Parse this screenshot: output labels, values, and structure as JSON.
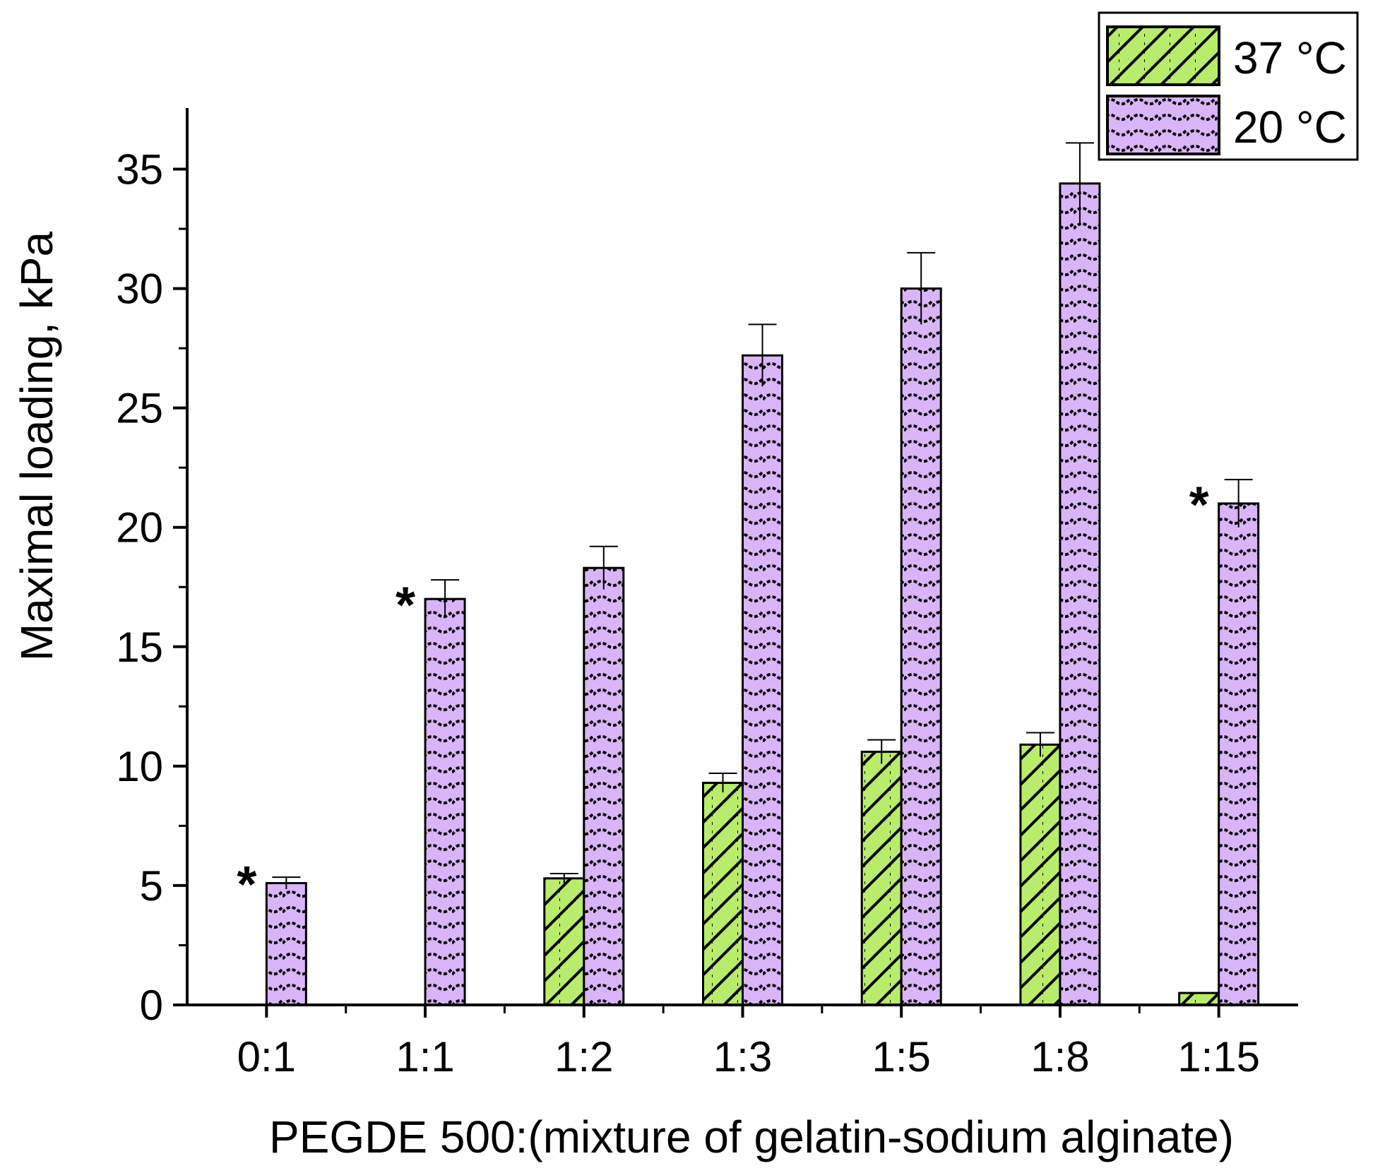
{
  "chart_data": {
    "type": "bar",
    "title": "",
    "xlabel": "PEGDE 500:(mixture of gelatin-sodium alginate)",
    "ylabel": "Maximal loading, kPa",
    "categories": [
      "0:1",
      "1:1",
      "1:2",
      "1:3",
      "1:5",
      "1:8",
      "1:15"
    ],
    "ylim": [
      0,
      37.5
    ],
    "yticks": [
      0,
      5,
      10,
      15,
      20,
      25,
      30,
      35
    ],
    "series": [
      {
        "name": "37 °C",
        "color": "#b9ec6b",
        "pattern": "diagonal-hatch",
        "values": [
          null,
          null,
          5.3,
          9.3,
          10.6,
          10.9,
          0.5
        ],
        "errors": [
          null,
          null,
          0.2,
          0.4,
          0.5,
          0.5,
          0.0
        ]
      },
      {
        "name": "20 °C",
        "color": "#d9b5f7",
        "pattern": "wave",
        "values": [
          5.1,
          17.0,
          18.3,
          27.2,
          30.0,
          34.4,
          21.0
        ],
        "errors": [
          0.25,
          0.8,
          0.9,
          1.3,
          1.5,
          1.7,
          1.0
        ]
      }
    ],
    "annotations": [
      {
        "text": "*",
        "category": "0:1",
        "y": 5.5
      },
      {
        "text": "*",
        "category": "1:1",
        "y": 17.2
      },
      {
        "text": "*",
        "category": "1:15",
        "y": 21.4
      }
    ],
    "legend": {
      "position": "top-right"
    },
    "grid": false
  }
}
